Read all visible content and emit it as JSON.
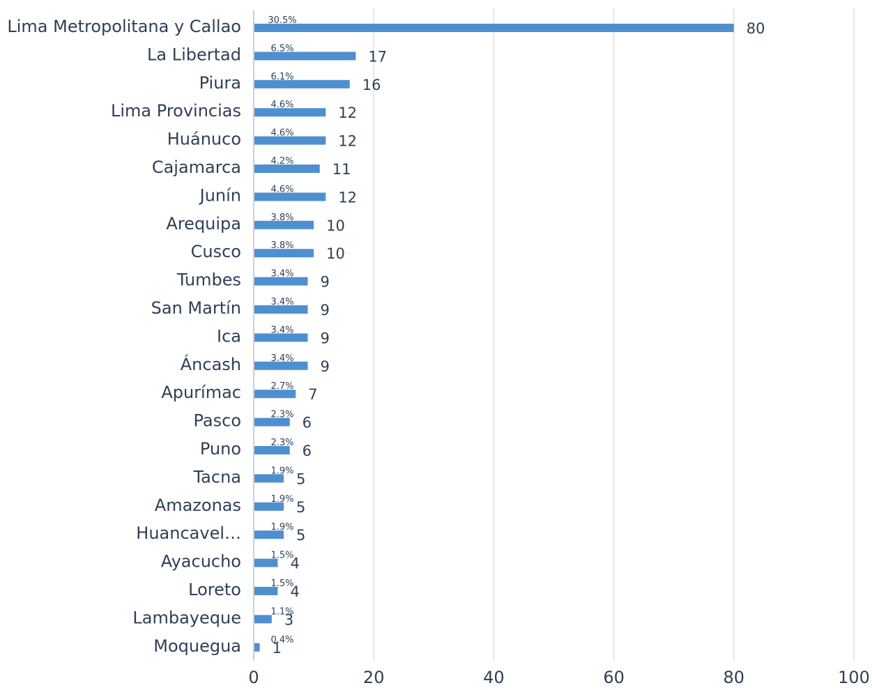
{
  "chart_data": {
    "type": "bar",
    "orientation": "horizontal",
    "title": "",
    "xlabel": "",
    "ylabel": "",
    "xlim": [
      0,
      100
    ],
    "x_ticks": [
      0,
      20,
      40,
      60,
      80,
      100
    ],
    "grid": "vertical",
    "legend": "none",
    "bar_color": "#4e8fd0",
    "categories": [
      "Lima Metropolitana y Callao",
      "La Libertad",
      "Piura",
      "Lima Provincias",
      "Huánuco",
      "Cajamarca",
      "Junín",
      "Arequipa",
      "Cusco",
      "Tumbes",
      "San Martín",
      "Ica",
      "Áncash",
      "Apurímac",
      "Pasco",
      "Puno",
      "Tacna",
      "Amazonas",
      "Huancavel…",
      "Ayacucho",
      "Loreto",
      "Lambayeque",
      "Moquegua"
    ],
    "values": [
      80,
      17,
      16,
      12,
      12,
      11,
      12,
      10,
      10,
      9,
      9,
      9,
      9,
      7,
      6,
      6,
      5,
      5,
      5,
      4,
      4,
      3,
      1
    ],
    "percent_labels": [
      "30.5%",
      "6.5%",
      "6.1%",
      "4.6%",
      "4.6%",
      "4.2%",
      "4.6%",
      "3.8%",
      "3.8%",
      "3.4%",
      "3.4%",
      "3.4%",
      "3.4%",
      "2.7%",
      "2.3%",
      "2.3%",
      "1.9%",
      "1.9%",
      "1.9%",
      "1.5%",
      "1.5%",
      "1.1%",
      "0.4%"
    ]
  }
}
